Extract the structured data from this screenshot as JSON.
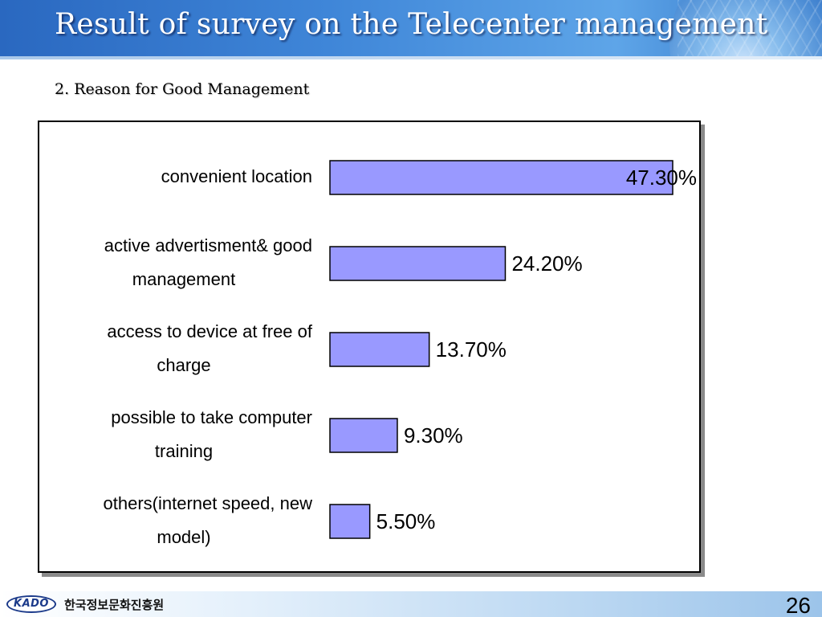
{
  "header": {
    "title": "Result of survey on the Telecenter management",
    "subtitle": "2. Reason for Good Management"
  },
  "chart_data": {
    "type": "bar",
    "orientation": "horizontal",
    "categories": [
      "convenient location",
      "active advertisment& good management",
      "access to device at free of charge",
      "possible to take computer training",
      "others(internet speed, new model)"
    ],
    "category_lines": [
      [
        "convenient location"
      ],
      [
        "active advertisment& good",
        "management"
      ],
      [
        "access to device at free of",
        "charge"
      ],
      [
        "possible to take computer",
        "training"
      ],
      [
        "others(internet speed, new",
        "model)"
      ]
    ],
    "values": [
      47.3,
      24.2,
      13.7,
      9.3,
      5.5
    ],
    "value_labels": [
      "47.30%",
      "24.20%",
      "13.70%",
      "9.30%",
      "5.50%"
    ],
    "title": "",
    "xlabel": "",
    "ylabel": "",
    "xlim": [
      0,
      47.3
    ],
    "grid": false,
    "legend": "none",
    "bar_color": "#9999ff",
    "bar_border_color": "#000000"
  },
  "footer": {
    "logo_text": "KADO",
    "org_name": "한국정보문화진흥원",
    "page_number": "26"
  },
  "colors": {
    "header_blue": "#3f86d8",
    "bar_fill": "#9999ff"
  }
}
